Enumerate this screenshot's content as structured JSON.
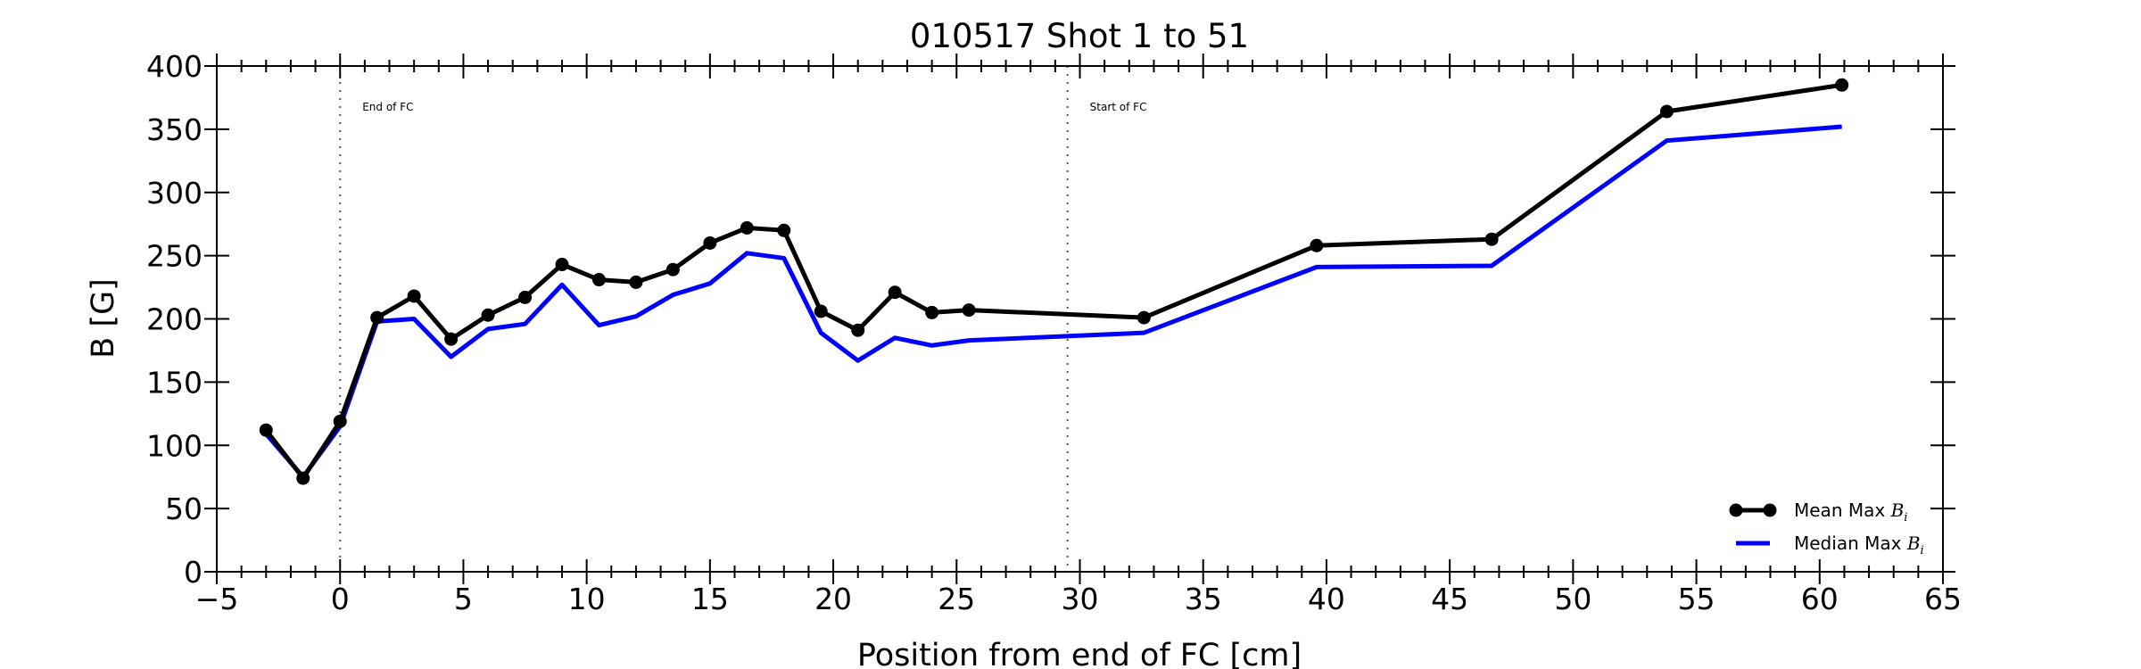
{
  "chart_data": {
    "type": "line",
    "title": "010517 Shot 1 to 51",
    "xlabel": "Position from end of FC [cm]",
    "ylabel": "B [G]",
    "xlim": [
      -5,
      65
    ],
    "ylim": [
      0,
      400
    ],
    "xticks": [
      -5,
      0,
      5,
      10,
      15,
      20,
      25,
      30,
      35,
      40,
      45,
      50,
      55,
      60,
      65
    ],
    "yticks": [
      0,
      50,
      100,
      150,
      200,
      250,
      300,
      350,
      400
    ],
    "xtick_labels": [
      "−5",
      "0",
      "5",
      "10",
      "15",
      "20",
      "25",
      "30",
      "35",
      "40",
      "45",
      "50",
      "55",
      "60",
      "65"
    ],
    "ytick_labels": [
      "0",
      "50",
      "100",
      "150",
      "200",
      "250",
      "300",
      "350",
      "400"
    ],
    "grid": false,
    "legend_position": "lower-right",
    "series": [
      {
        "name": "Mean Max B_i",
        "legend_prefix": "Mean Max ",
        "legend_math": "B",
        "legend_sub": "i",
        "color": "#000000",
        "markers": true,
        "x": [
          -3,
          -1.5,
          0,
          1.5,
          3,
          4.5,
          6,
          7.5,
          9,
          10.5,
          12,
          13.5,
          15,
          16.5,
          18,
          19.5,
          21,
          22.5,
          24,
          25.5,
          32.6,
          39.6,
          46.7,
          53.8,
          60.9
        ],
        "y": [
          112,
          74,
          119,
          201,
          218,
          184,
          203,
          217,
          243,
          231,
          229,
          239,
          260,
          272,
          270,
          206,
          191,
          221,
          205,
          207,
          201,
          258,
          263,
          364,
          385
        ]
      },
      {
        "name": "Median Max B_i",
        "legend_prefix": "Median Max ",
        "legend_math": "B",
        "legend_sub": "i",
        "color": "#0000ff",
        "markers": false,
        "x": [
          -3,
          -1.5,
          0,
          1.5,
          3,
          4.5,
          6,
          7.5,
          9,
          10.5,
          12,
          13.5,
          15,
          16.5,
          18,
          19.5,
          21,
          22.5,
          24,
          25.5,
          32.6,
          39.6,
          46.7,
          53.8,
          60.9
        ],
        "y": [
          109,
          75,
          115,
          198,
          200,
          170,
          192,
          196,
          227,
          195,
          202,
          219,
          228,
          252,
          248,
          189,
          167,
          185,
          179,
          183,
          189,
          241,
          242,
          341,
          352
        ]
      }
    ],
    "vlines": [
      {
        "x": 0,
        "label": "End of FC"
      },
      {
        "x": 29.5,
        "label": "Start of FC"
      }
    ]
  }
}
